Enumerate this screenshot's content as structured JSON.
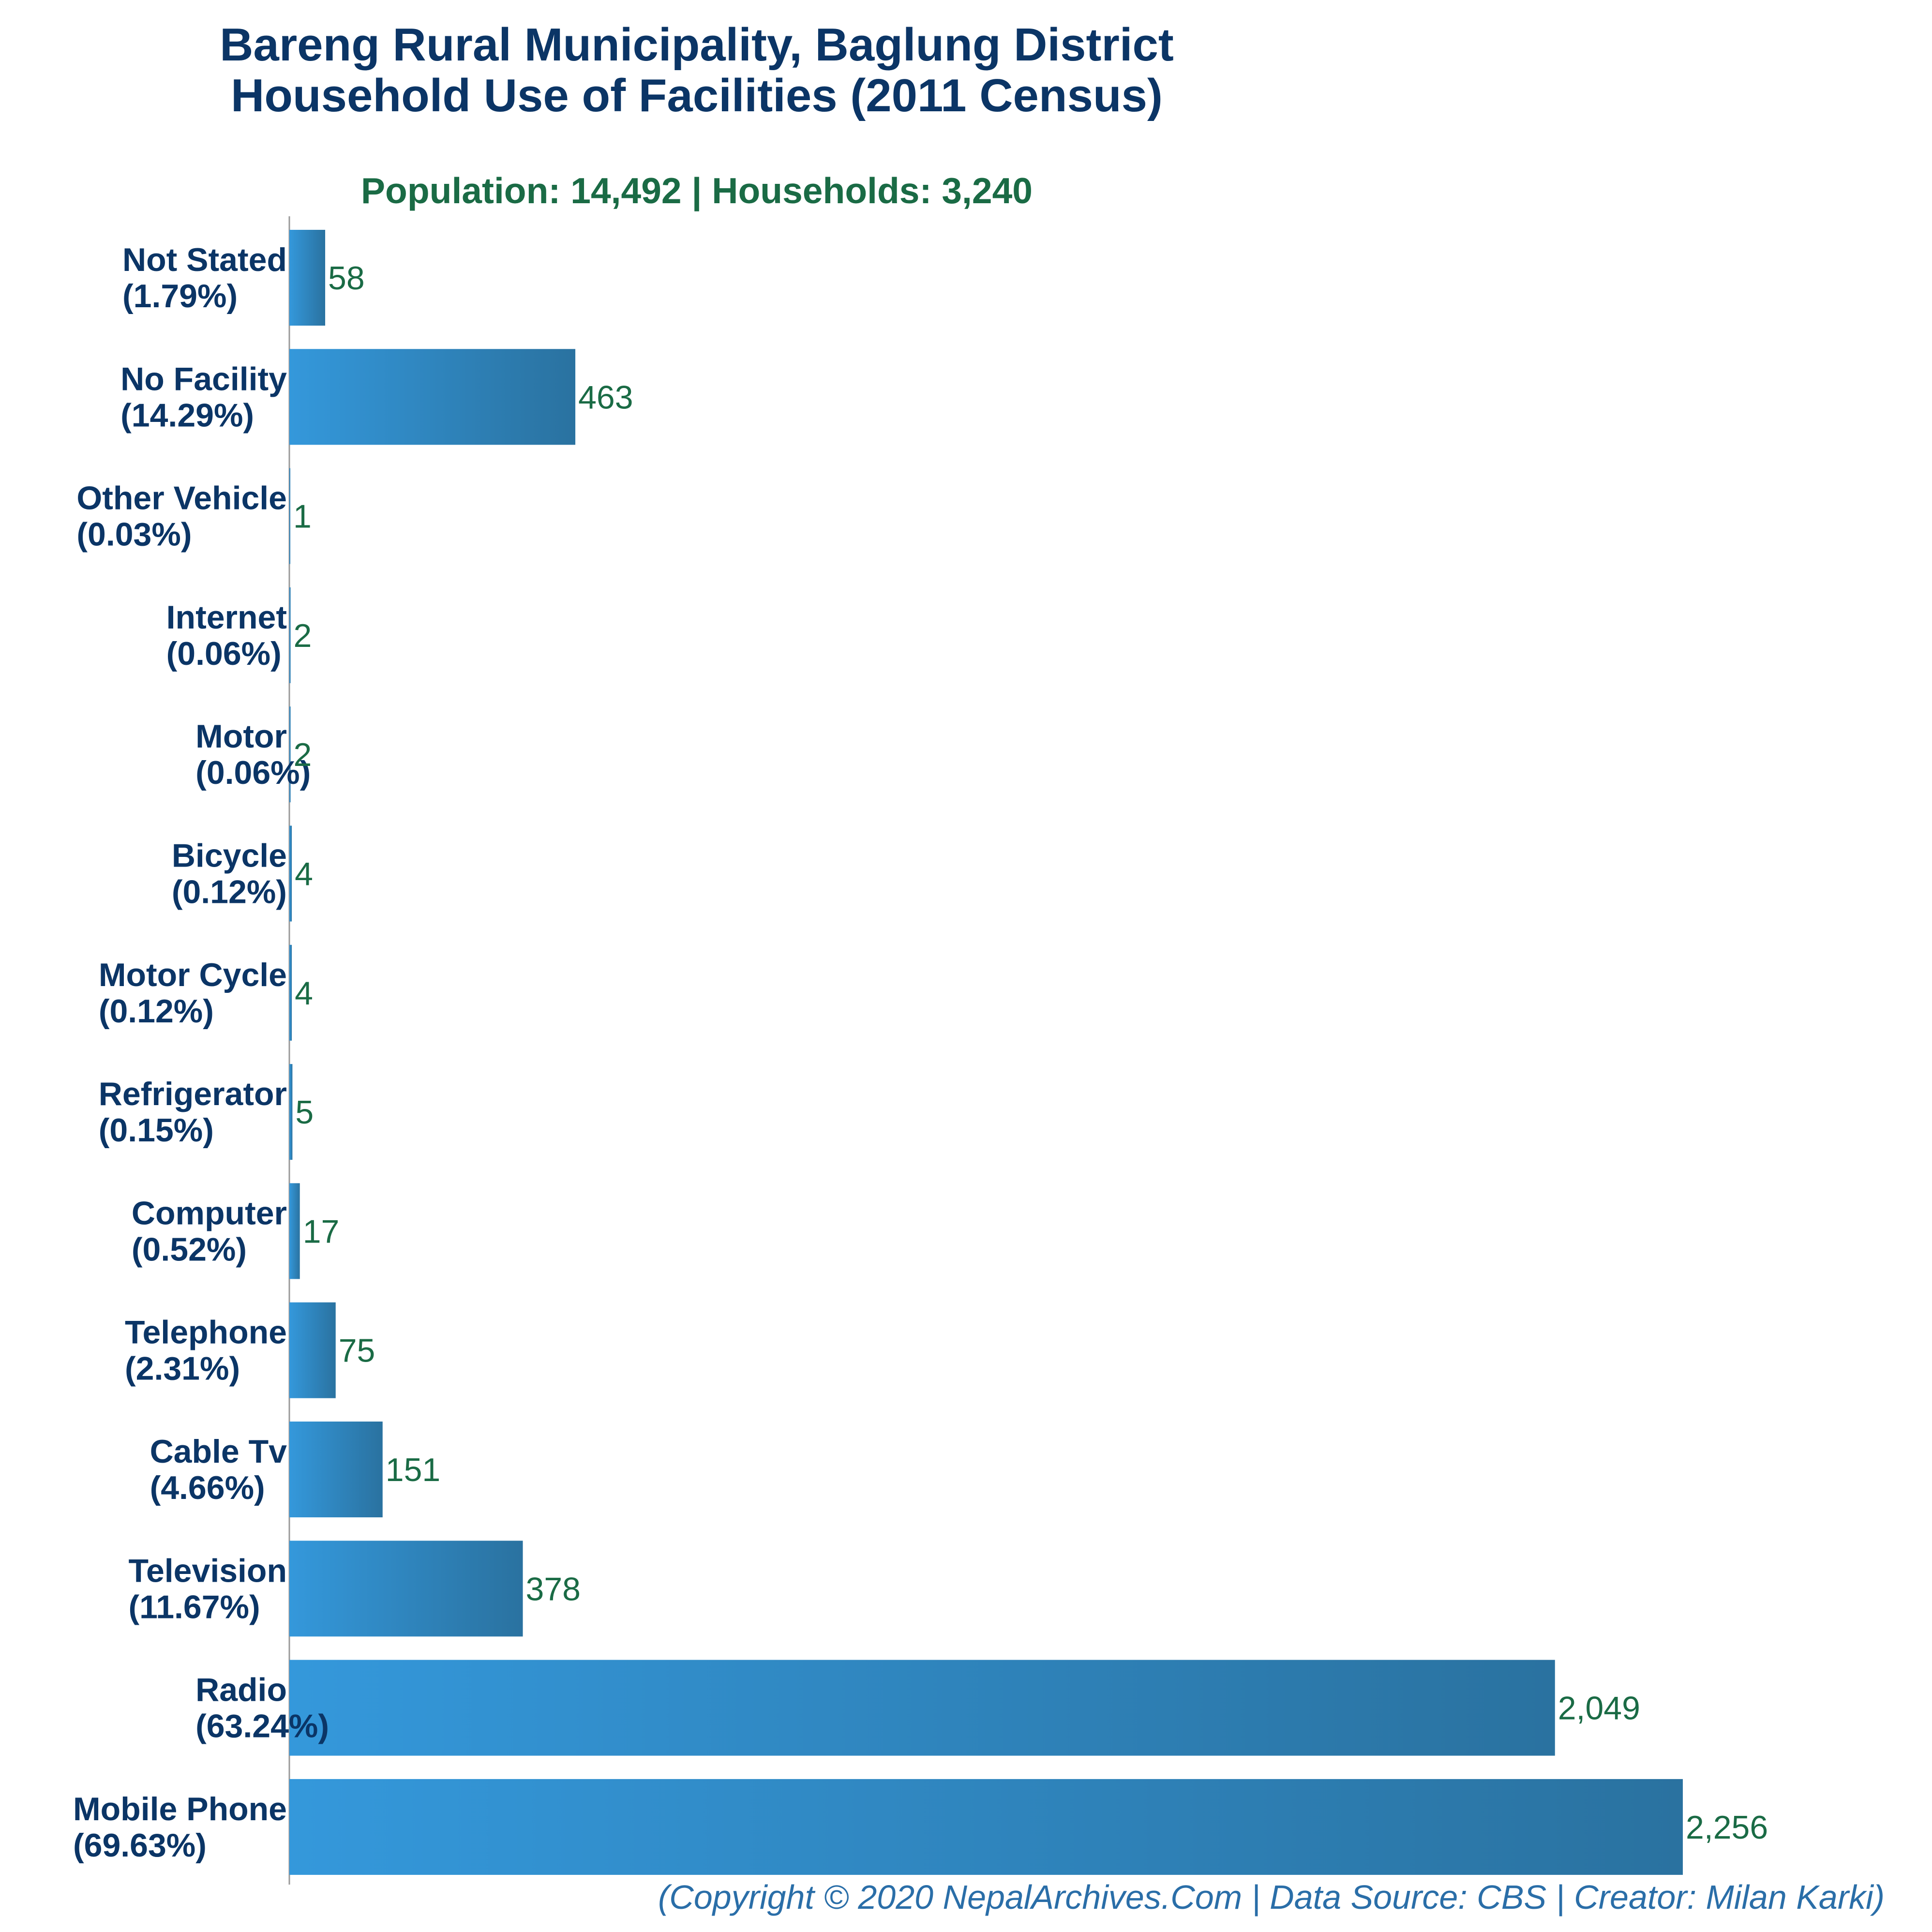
{
  "chart_data": {
    "type": "bar",
    "orientation": "horizontal",
    "title_line1": "Bareng Rural Municipality, Baglung District",
    "title_line2": "Household Use of Facilities (2011 Census)",
    "subtitle": "Population: 14,492 | Households: 3,240",
    "footer": "(Copyright © 2020 NepalArchives.Com | Data Source: CBS | Creator: Milan Karki)",
    "categories": [
      {
        "name": "Not Stated",
        "pct": "(1.79%)",
        "value": 58,
        "value_label": "58"
      },
      {
        "name": "No Facility",
        "pct": "(14.29%)",
        "value": 463,
        "value_label": "463"
      },
      {
        "name": "Other Vehicle",
        "pct": "(0.03%)",
        "value": 1,
        "value_label": "1"
      },
      {
        "name": "Internet",
        "pct": "(0.06%)",
        "value": 2,
        "value_label": "2"
      },
      {
        "name": "Motor",
        "pct": "(0.06%)",
        "value": 2,
        "value_label": "2"
      },
      {
        "name": "Bicycle",
        "pct": "(0.12%)",
        "value": 4,
        "value_label": "4"
      },
      {
        "name": "Motor Cycle",
        "pct": "(0.12%)",
        "value": 4,
        "value_label": "4"
      },
      {
        "name": "Refrigerator",
        "pct": "(0.15%)",
        "value": 5,
        "value_label": "5"
      },
      {
        "name": "Computer",
        "pct": "(0.52%)",
        "value": 17,
        "value_label": "17"
      },
      {
        "name": "Telephone",
        "pct": "(2.31%)",
        "value": 75,
        "value_label": "75"
      },
      {
        "name": "Cable Tv",
        "pct": "(4.66%)",
        "value": 151,
        "value_label": "151"
      },
      {
        "name": "Television",
        "pct": "(11.67%)",
        "value": 378,
        "value_label": "378"
      },
      {
        "name": "Radio",
        "pct": "(63.24%)",
        "value": 2049,
        "value_label": "2,049"
      },
      {
        "name": "Mobile Phone",
        "pct": "(69.63%)",
        "value": 2256,
        "value_label": "2,256"
      }
    ],
    "xlim": [
      0,
      2256
    ],
    "grid": false,
    "legend": "none",
    "colors": {
      "bar_start": "#3498db",
      "bar_end": "#2a72a0",
      "title": "#0b3566",
      "subtitle": "#1a6b45",
      "value_label": "#1a6b45",
      "category_label": "#0b3566",
      "footer": "#2a6ea8",
      "axis": "#999999"
    }
  }
}
